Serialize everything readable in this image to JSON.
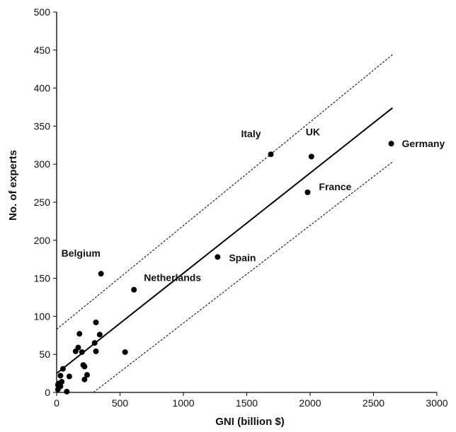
{
  "chart_data": {
    "type": "scatter",
    "title": "",
    "xlabel": "GNI (billion $)",
    "ylabel": "No. of experts",
    "xlim": [
      0,
      3000
    ],
    "ylim": [
      0,
      500
    ],
    "x_ticks": [
      0,
      500,
      1000,
      1500,
      2000,
      2500,
      3000
    ],
    "y_ticks": [
      0,
      50,
      100,
      150,
      200,
      250,
      300,
      350,
      400,
      450,
      500
    ],
    "grid": false,
    "legend": "none",
    "point_color": "#000000",
    "points": [
      {
        "x": 2640,
        "y": 327,
        "label": "Germany"
      },
      {
        "x": 2010,
        "y": 310,
        "label": "UK"
      },
      {
        "x": 1690,
        "y": 313,
        "label": "Italy"
      },
      {
        "x": 1980,
        "y": 263,
        "label": "France"
      },
      {
        "x": 1270,
        "y": 178,
        "label": "Spain"
      },
      {
        "x": 610,
        "y": 135,
        "label": "Netherlands"
      },
      {
        "x": 350,
        "y": 156,
        "label": "Belgium"
      },
      {
        "x": 540,
        "y": 53,
        "label": ""
      },
      {
        "x": 310,
        "y": 92,
        "label": ""
      },
      {
        "x": 340,
        "y": 76,
        "label": ""
      },
      {
        "x": 300,
        "y": 65,
        "label": ""
      },
      {
        "x": 310,
        "y": 54,
        "label": ""
      },
      {
        "x": 180,
        "y": 77,
        "label": ""
      },
      {
        "x": 170,
        "y": 59,
        "label": ""
      },
      {
        "x": 150,
        "y": 54,
        "label": ""
      },
      {
        "x": 200,
        "y": 53,
        "label": ""
      },
      {
        "x": 210,
        "y": 36,
        "label": ""
      },
      {
        "x": 220,
        "y": 34,
        "label": ""
      },
      {
        "x": 240,
        "y": 23,
        "label": ""
      },
      {
        "x": 220,
        "y": 17,
        "label": ""
      },
      {
        "x": 100,
        "y": 21,
        "label": ""
      },
      {
        "x": 50,
        "y": 31,
        "label": ""
      },
      {
        "x": 30,
        "y": 22,
        "label": ""
      },
      {
        "x": 40,
        "y": 14,
        "label": ""
      },
      {
        "x": 20,
        "y": 12,
        "label": ""
      },
      {
        "x": 10,
        "y": 10,
        "label": ""
      },
      {
        "x": 30,
        "y": 8,
        "label": ""
      },
      {
        "x": 10,
        "y": 4,
        "label": ""
      },
      {
        "x": 80,
        "y": 1,
        "label": ""
      }
    ],
    "regression_line": {
      "x": [
        0,
        2650
      ],
      "y": [
        25,
        374
      ]
    },
    "confidence_bands": [
      {
        "x": [
          0,
          2650
        ],
        "y": [
          83,
          444
        ]
      },
      {
        "x": [
          290,
          2650
        ],
        "y": [
          0,
          303
        ]
      }
    ]
  }
}
